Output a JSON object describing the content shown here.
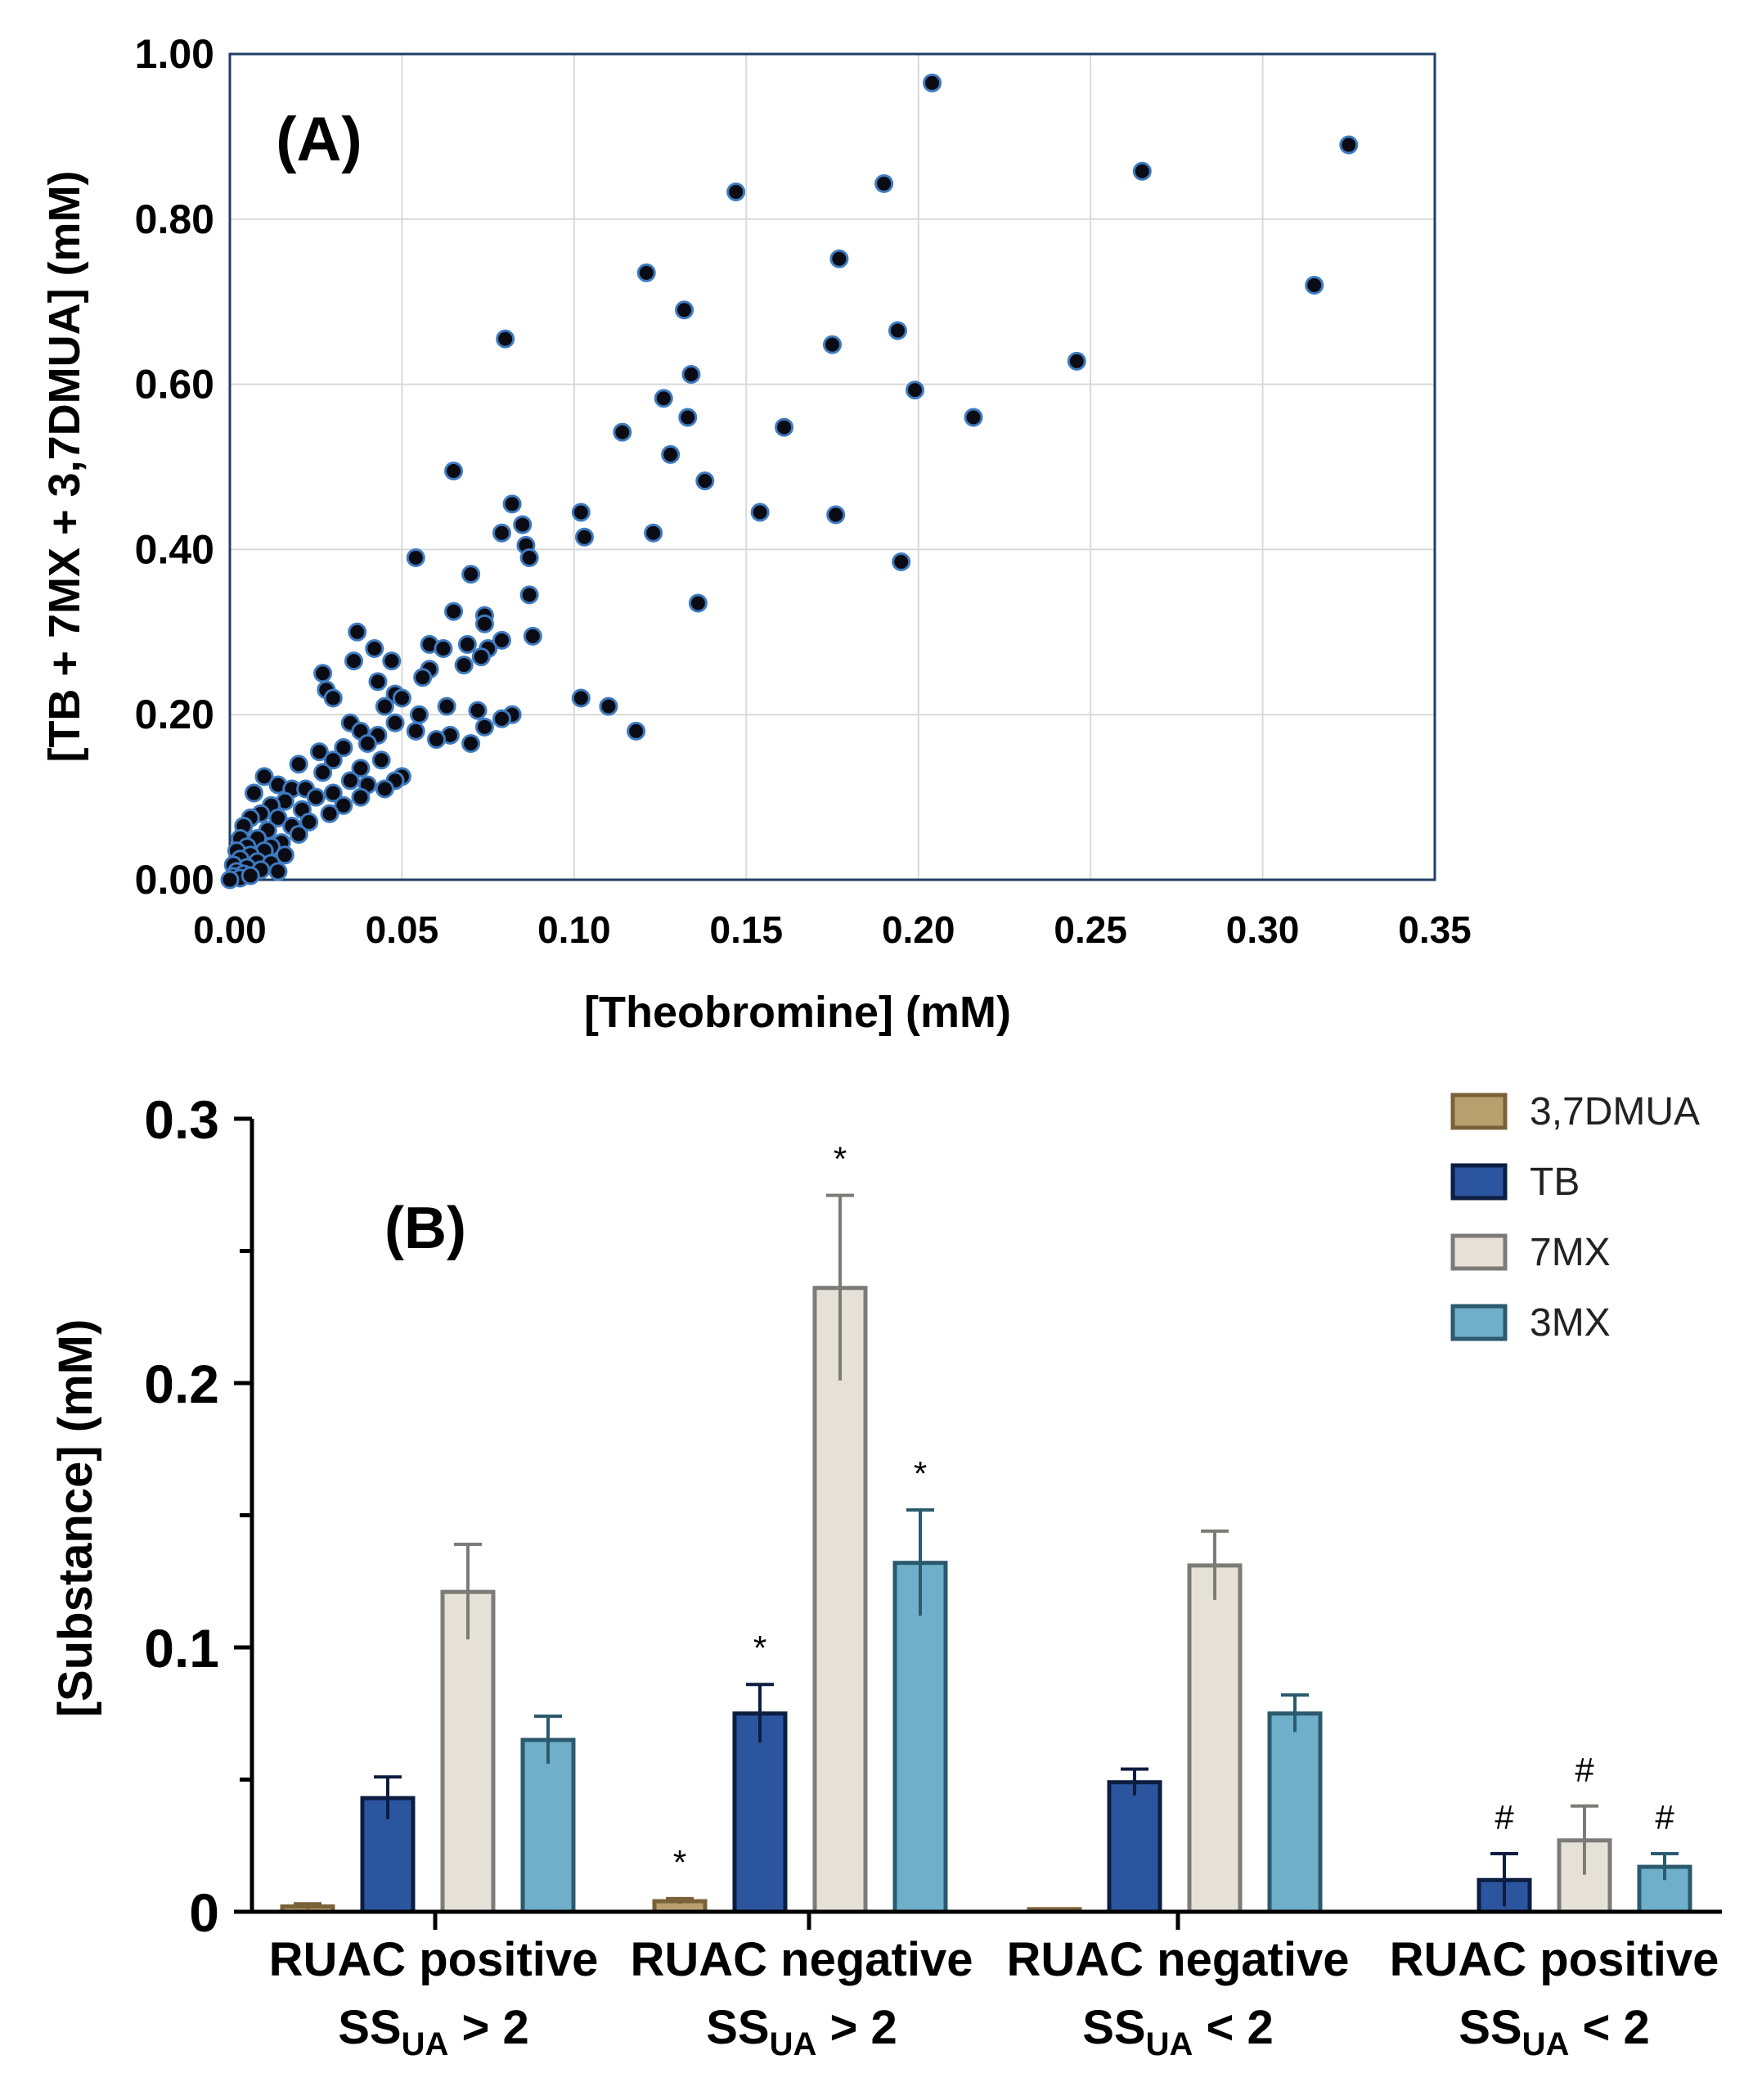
{
  "chart_data": [
    {
      "panel_label": "(A)",
      "type": "scatter",
      "xlabel": "[Theobromine] (mM)",
      "ylabel": "[TB + 7MX + 3,7DMUA] (mM)",
      "xlim": [
        0,
        0.35
      ],
      "ylim": [
        0,
        1.0
      ],
      "grid": true,
      "x_ticks": [
        "0.00",
        "0.05",
        "0.10",
        "0.15",
        "0.20",
        "0.25",
        "0.30",
        "0.35"
      ],
      "x_tick_values": [
        0,
        0.05,
        0.1,
        0.15,
        0.2,
        0.25,
        0.3,
        0.35
      ],
      "y_ticks": [
        "0.00",
        "0.20",
        "0.40",
        "0.60",
        "0.80",
        "1.00"
      ],
      "y_tick_values": [
        0,
        0.2,
        0.4,
        0.6,
        0.8,
        1.0
      ],
      "points": [
        [
          0.204,
          0.965
        ],
        [
          0.325,
          0.89
        ],
        [
          0.265,
          0.858
        ],
        [
          0.19,
          0.843
        ],
        [
          0.147,
          0.833
        ],
        [
          0.177,
          0.752
        ],
        [
          0.121,
          0.735
        ],
        [
          0.315,
          0.72
        ],
        [
          0.132,
          0.69
        ],
        [
          0.194,
          0.665
        ],
        [
          0.08,
          0.655
        ],
        [
          0.175,
          0.648
        ],
        [
          0.246,
          0.628
        ],
        [
          0.134,
          0.612
        ],
        [
          0.199,
          0.593
        ],
        [
          0.126,
          0.583
        ],
        [
          0.133,
          0.56
        ],
        [
          0.216,
          0.56
        ],
        [
          0.161,
          0.548
        ],
        [
          0.114,
          0.542
        ],
        [
          0.128,
          0.515
        ],
        [
          0.065,
          0.495
        ],
        [
          0.138,
          0.483
        ],
        [
          0.154,
          0.445
        ],
        [
          0.176,
          0.442
        ],
        [
          0.102,
          0.445
        ],
        [
          0.082,
          0.455
        ],
        [
          0.085,
          0.43
        ],
        [
          0.079,
          0.42
        ],
        [
          0.123,
          0.42
        ],
        [
          0.103,
          0.415
        ],
        [
          0.086,
          0.405
        ],
        [
          0.087,
          0.39
        ],
        [
          0.054,
          0.39
        ],
        [
          0.195,
          0.385
        ],
        [
          0.07,
          0.37
        ],
        [
          0.087,
          0.345
        ],
        [
          0.136,
          0.335
        ],
        [
          0.065,
          0.325
        ],
        [
          0.074,
          0.32
        ],
        [
          0.074,
          0.31
        ],
        [
          0.037,
          0.3
        ],
        [
          0.088,
          0.295
        ],
        [
          0.079,
          0.29
        ],
        [
          0.058,
          0.285
        ],
        [
          0.069,
          0.285
        ],
        [
          0.075,
          0.28
        ],
        [
          0.062,
          0.28
        ],
        [
          0.042,
          0.28
        ],
        [
          0.073,
          0.27
        ],
        [
          0.047,
          0.265
        ],
        [
          0.036,
          0.265
        ],
        [
          0.068,
          0.26
        ],
        [
          0.058,
          0.255
        ],
        [
          0.027,
          0.25
        ],
        [
          0.056,
          0.245
        ],
        [
          0.043,
          0.24
        ],
        [
          0.028,
          0.23
        ],
        [
          0.048,
          0.225
        ],
        [
          0.102,
          0.22
        ],
        [
          0.05,
          0.22
        ],
        [
          0.03,
          0.22
        ],
        [
          0.11,
          0.21
        ],
        [
          0.063,
          0.21
        ],
        [
          0.045,
          0.21
        ],
        [
          0.072,
          0.205
        ],
        [
          0.082,
          0.2
        ],
        [
          0.055,
          0.2
        ],
        [
          0.079,
          0.195
        ],
        [
          0.035,
          0.19
        ],
        [
          0.048,
          0.19
        ],
        [
          0.074,
          0.185
        ],
        [
          0.118,
          0.18
        ],
        [
          0.054,
          0.18
        ],
        [
          0.038,
          0.18
        ],
        [
          0.043,
          0.175
        ],
        [
          0.064,
          0.175
        ],
        [
          0.06,
          0.17
        ],
        [
          0.07,
          0.165
        ],
        [
          0.04,
          0.165
        ],
        [
          0.033,
          0.16
        ],
        [
          0.026,
          0.155
        ],
        [
          0.03,
          0.145
        ],
        [
          0.044,
          0.145
        ],
        [
          0.02,
          0.14
        ],
        [
          0.038,
          0.135
        ],
        [
          0.027,
          0.13
        ],
        [
          0.01,
          0.125
        ],
        [
          0.05,
          0.125
        ],
        [
          0.035,
          0.12
        ],
        [
          0.048,
          0.12
        ],
        [
          0.014,
          0.115
        ],
        [
          0.04,
          0.115
        ],
        [
          0.018,
          0.11
        ],
        [
          0.022,
          0.11
        ],
        [
          0.045,
          0.11
        ],
        [
          0.007,
          0.105
        ],
        [
          0.03,
          0.105
        ],
        [
          0.038,
          0.1
        ],
        [
          0.025,
          0.1
        ],
        [
          0.016,
          0.095
        ],
        [
          0.012,
          0.09
        ],
        [
          0.033,
          0.09
        ],
        [
          0.021,
          0.085
        ],
        [
          0.009,
          0.08
        ],
        [
          0.029,
          0.08
        ],
        [
          0.006,
          0.075
        ],
        [
          0.014,
          0.075
        ],
        [
          0.023,
          0.07
        ],
        [
          0.004,
          0.065
        ],
        [
          0.018,
          0.065
        ],
        [
          0.011,
          0.06
        ],
        [
          0.02,
          0.055
        ],
        [
          0.003,
          0.05
        ],
        [
          0.008,
          0.05
        ],
        [
          0.015,
          0.045
        ],
        [
          0.005,
          0.04
        ],
        [
          0.012,
          0.04
        ],
        [
          0.002,
          0.035
        ],
        [
          0.01,
          0.035
        ],
        [
          0.006,
          0.03
        ],
        [
          0.016,
          0.03
        ],
        [
          0.003,
          0.025
        ],
        [
          0.008,
          0.022
        ],
        [
          0.012,
          0.02
        ],
        [
          0.001,
          0.018
        ],
        [
          0.005,
          0.015
        ],
        [
          0.009,
          0.012
        ],
        [
          0.002,
          0.01
        ],
        [
          0.004,
          0.007
        ],
        [
          0.001,
          0.004
        ],
        [
          0.003,
          0.002
        ],
        [
          0.0,
          0.0
        ],
        [
          0.006,
          0.005
        ],
        [
          0.014,
          0.01
        ]
      ]
    },
    {
      "panel_label": "(B)",
      "type": "bar",
      "ylabel": "[Substance] (mM)",
      "ylim": [
        0,
        0.3
      ],
      "y_ticks": [
        "0",
        "0.1",
        "0.2",
        "0.3"
      ],
      "y_tick_values": [
        0,
        0.1,
        0.2,
        0.3
      ],
      "legend_position": "top-right",
      "categories": [
        {
          "line1": "RUAC positive",
          "ss": "SS",
          "sub": "UA",
          "rel": " > 2"
        },
        {
          "line1": "RUAC negative",
          "ss": "SS",
          "sub": "UA",
          "rel": " > 2"
        },
        {
          "line1": "RUAC negative",
          "ss": "SS",
          "sub": "UA",
          "rel": " < 2"
        },
        {
          "line1": "RUAC positive",
          "ss": "SS",
          "sub": "UA",
          "rel": " < 2"
        }
      ],
      "series": [
        {
          "name": "3,7DMUA",
          "fill": "#b89f6e",
          "stroke": "#7a6238",
          "values": [
            0.002,
            0.004,
            0.001,
            0.0
          ],
          "errors": [
            0.001,
            0.001,
            0.0005,
            0.0
          ],
          "marks": [
            "",
            "*",
            "",
            ""
          ]
        },
        {
          "name": "TB",
          "fill": "#2c55a0",
          "stroke": "#0d1d40",
          "values": [
            0.043,
            0.075,
            0.049,
            0.012
          ],
          "errors": [
            0.008,
            0.011,
            0.005,
            0.01
          ],
          "marks": [
            "",
            "*",
            "",
            "#"
          ]
        },
        {
          "name": "7MX",
          "fill": "#e5e1d7",
          "stroke": "#7c7b77",
          "values": [
            0.121,
            0.236,
            0.131,
            0.027
          ],
          "errors": [
            0.018,
            0.035,
            0.013,
            0.013
          ],
          "marks": [
            "",
            "*",
            "",
            "#"
          ]
        },
        {
          "name": "3MX",
          "fill": "#6fafc9",
          "stroke": "#2b5a6e",
          "values": [
            0.065,
            0.132,
            0.075,
            0.017
          ],
          "errors": [
            0.009,
            0.02,
            0.007,
            0.005
          ],
          "marks": [
            "",
            "*",
            "",
            "#"
          ]
        }
      ]
    }
  ]
}
